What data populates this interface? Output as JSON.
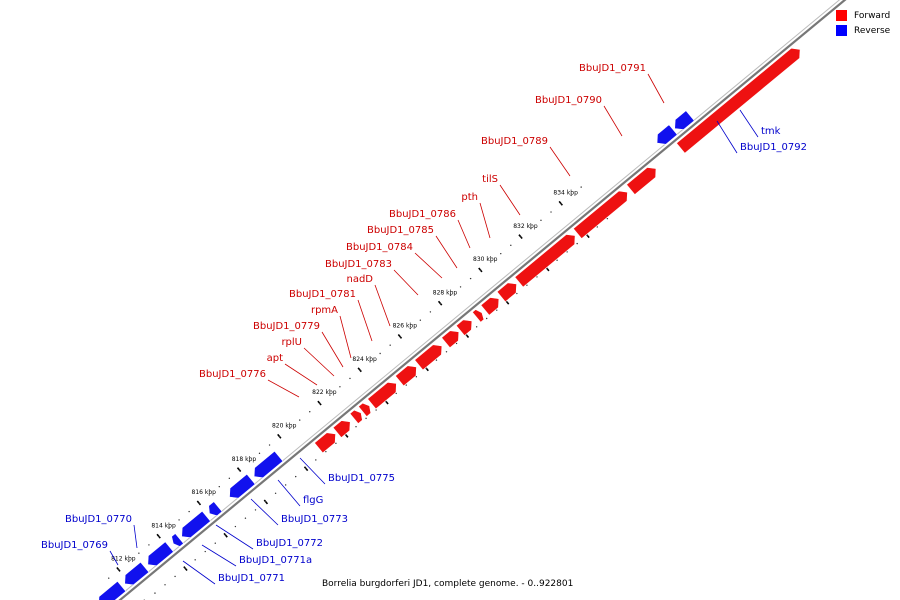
{
  "diagram": {
    "genome": {
      "caption": "Borrelia burgdorferi JD1, complete genome. - 0..922801"
    },
    "legend": [
      {
        "label": "Forward",
        "color": "#ff0000"
      },
      {
        "label": "Reverse",
        "color": "#0000ff"
      }
    ],
    "colors": {
      "forward": "#ee1111",
      "reverse": "#1111ee",
      "backbone": "#777777"
    },
    "ticks": [
      "812 kbp",
      "814 kbp",
      "816 kbp",
      "818 kbp",
      "820 kbp",
      "822 kbp",
      "824 kbp",
      "826 kbp",
      "828 kbp",
      "830 kbp",
      "832 kbp",
      "834 kbp"
    ],
    "forward_genes": [
      "BbuJD1_0776",
      "apt",
      "rplU",
      "BbuJD1_0779",
      "rpmA",
      "BbuJD1_0781",
      "nadD",
      "BbuJD1_0783",
      "BbuJD1_0784",
      "BbuJD1_0785",
      "BbuJD1_0786",
      "pth",
      "tilS",
      "BbuJD1_0789",
      "BbuJD1_0790",
      "BbuJD1_0791"
    ],
    "reverse_genes": [
      "BbuJD1_0769",
      "BbuJD1_0770",
      "BbuJD1_0771",
      "BbuJD1_0771a",
      "BbuJD1_0772",
      "BbuJD1_0773",
      "flgG",
      "BbuJD1_0775",
      "BbuJD1_0792",
      "tmk"
    ]
  }
}
